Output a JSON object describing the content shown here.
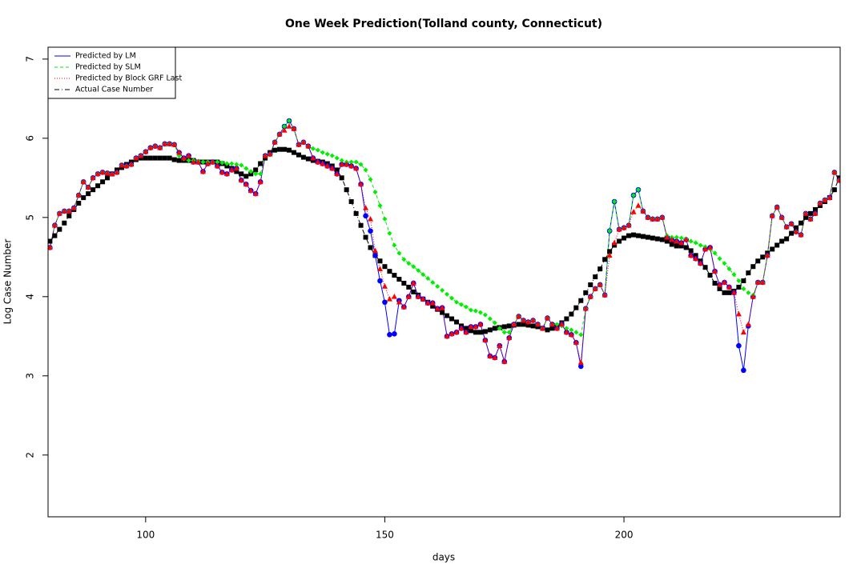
{
  "chart_data": {
    "type": "line",
    "title": "One Week Prediction(Tolland county, Connecticut)",
    "xlabel": "days",
    "ylabel": "Log Case Number",
    "xlim": [
      79.6,
      245.2
    ],
    "ylim": [
      1.22,
      7.15
    ],
    "xticks": [
      100,
      150,
      200
    ],
    "yticks": [
      2,
      3,
      4,
      5,
      6,
      7
    ],
    "legend": "top-left",
    "x": [
      80,
      81,
      82,
      83,
      84,
      85,
      86,
      87,
      88,
      89,
      90,
      91,
      92,
      93,
      94,
      95,
      96,
      97,
      98,
      99,
      100,
      101,
      102,
      103,
      104,
      105,
      106,
      107,
      108,
      109,
      110,
      111,
      112,
      113,
      114,
      115,
      116,
      117,
      118,
      119,
      120,
      121,
      122,
      123,
      124,
      125,
      126,
      127,
      128,
      129,
      130,
      131,
      132,
      133,
      134,
      135,
      136,
      137,
      138,
      139,
      140,
      141,
      142,
      143,
      144,
      145,
      146,
      147,
      148,
      149,
      150,
      151,
      152,
      153,
      154,
      155,
      156,
      157,
      158,
      159,
      160,
      161,
      162,
      163,
      164,
      165,
      166,
      167,
      168,
      169,
      170,
      171,
      172,
      173,
      174,
      175,
      176,
      177,
      178,
      179,
      180,
      181,
      182,
      183,
      184,
      185,
      186,
      187,
      188,
      189,
      190,
      191,
      192,
      193,
      194,
      195,
      196,
      197,
      198,
      199,
      200,
      201,
      202,
      203,
      204,
      205,
      206,
      207,
      208,
      209,
      210,
      211,
      212,
      213,
      214,
      215,
      216,
      217,
      218,
      219,
      220,
      221,
      222,
      223,
      224,
      225,
      226,
      227,
      228,
      229,
      230,
      231,
      232,
      233,
      234,
      235,
      236,
      237,
      238,
      239,
      240,
      241,
      242,
      243,
      244,
      245
    ],
    "series": [
      {
        "name": "Predicted by LM",
        "color": "#0000ff",
        "linestyle": "solid",
        "marker": "circle",
        "values": [
          4.62,
          4.9,
          5.05,
          5.08,
          5.08,
          5.12,
          5.28,
          5.45,
          5.38,
          5.5,
          5.55,
          5.57,
          5.56,
          5.55,
          5.57,
          5.66,
          5.65,
          5.67,
          5.75,
          5.78,
          5.83,
          5.88,
          5.9,
          5.88,
          5.93,
          5.93,
          5.92,
          5.82,
          5.75,
          5.78,
          5.7,
          5.7,
          5.58,
          5.68,
          5.7,
          5.65,
          5.57,
          5.55,
          5.6,
          5.62,
          5.47,
          5.42,
          5.34,
          5.3,
          5.45,
          5.78,
          5.8,
          5.95,
          6.05,
          6.15,
          6.22,
          6.12,
          5.92,
          5.95,
          5.9,
          5.75,
          5.7,
          5.68,
          5.65,
          5.62,
          5.55,
          5.67,
          5.67,
          5.65,
          5.62,
          5.42,
          5.02,
          4.83,
          4.52,
          4.2,
          3.93,
          3.52,
          3.53,
          3.95,
          3.87,
          4.0,
          4.17,
          4.0,
          3.97,
          3.92,
          3.92,
          3.85,
          3.86,
          3.5,
          3.53,
          3.55,
          3.6,
          3.55,
          3.62,
          3.62,
          3.65,
          3.45,
          3.25,
          3.23,
          3.38,
          3.18,
          3.48,
          3.65,
          3.75,
          3.7,
          3.68,
          3.7,
          3.65,
          3.6,
          3.73,
          3.65,
          3.6,
          3.65,
          3.55,
          3.52,
          3.42,
          3.12,
          3.85,
          4.0,
          4.1,
          4.15,
          4.02,
          4.83,
          5.2,
          4.85,
          4.87,
          4.9,
          5.28,
          5.35,
          5.08,
          5.0,
          4.98,
          4.98,
          5.0,
          4.75,
          4.72,
          4.7,
          4.68,
          4.72,
          4.52,
          4.48,
          4.42,
          4.6,
          4.62,
          4.32,
          4.15,
          4.18,
          4.12,
          4.05,
          3.38,
          3.07,
          3.63,
          4.0,
          4.18,
          4.18,
          4.52,
          5.02,
          5.13,
          5.0,
          4.88,
          4.92,
          4.82,
          4.78,
          5.05,
          4.98,
          5.05,
          5.18,
          5.22,
          5.25,
          5.57,
          5.47
        ]
      },
      {
        "name": "Predicted by SLM",
        "color": "#00ee00",
        "linestyle": "dash",
        "marker": "diamond",
        "values": [
          4.62,
          4.9,
          5.05,
          5.08,
          5.08,
          5.12,
          5.28,
          5.45,
          5.38,
          5.5,
          5.55,
          5.57,
          5.56,
          5.55,
          5.57,
          5.66,
          5.65,
          5.67,
          5.75,
          5.78,
          5.83,
          5.88,
          5.9,
          5.88,
          5.93,
          5.93,
          5.92,
          5.78,
          5.74,
          5.72,
          5.72,
          5.71,
          5.7,
          5.7,
          5.7,
          5.7,
          5.69,
          5.68,
          5.68,
          5.67,
          5.66,
          5.62,
          5.58,
          5.55,
          5.55,
          5.78,
          5.8,
          5.95,
          6.05,
          6.15,
          6.22,
          6.12,
          5.92,
          5.95,
          5.9,
          5.87,
          5.85,
          5.82,
          5.8,
          5.78,
          5.75,
          5.72,
          5.7,
          5.7,
          5.7,
          5.67,
          5.6,
          5.48,
          5.32,
          5.15,
          4.98,
          4.8,
          4.65,
          4.55,
          4.47,
          4.42,
          4.38,
          4.33,
          4.28,
          4.23,
          4.18,
          4.13,
          4.08,
          4.03,
          3.98,
          3.93,
          3.9,
          3.87,
          3.83,
          3.82,
          3.8,
          3.77,
          3.72,
          3.67,
          3.6,
          3.55,
          3.55,
          3.65,
          3.75,
          3.7,
          3.68,
          3.7,
          3.65,
          3.6,
          3.73,
          3.65,
          3.65,
          3.63,
          3.6,
          3.58,
          3.55,
          3.52,
          3.85,
          4.0,
          4.1,
          4.15,
          4.02,
          4.83,
          5.2,
          4.85,
          4.87,
          4.9,
          5.28,
          5.35,
          5.08,
          5.0,
          4.98,
          4.98,
          5.0,
          4.77,
          4.75,
          4.75,
          4.74,
          4.73,
          4.7,
          4.68,
          4.65,
          4.63,
          4.6,
          4.55,
          4.48,
          4.42,
          4.35,
          4.28,
          4.2,
          4.1,
          4.05,
          4.02,
          4.18,
          4.18,
          4.52,
          5.02,
          5.13,
          5.0,
          4.88,
          4.92,
          4.82,
          4.78,
          5.05,
          4.98,
          5.05,
          5.18,
          5.22,
          5.25,
          5.57,
          5.47
        ]
      },
      {
        "name": "Predicted by Block GRF Last",
        "color": "#ff0000",
        "linestyle": "dot",
        "marker": "triangle",
        "values": [
          4.62,
          4.9,
          5.05,
          5.08,
          5.08,
          5.12,
          5.28,
          5.45,
          5.38,
          5.5,
          5.55,
          5.57,
          5.56,
          5.55,
          5.57,
          5.66,
          5.65,
          5.67,
          5.75,
          5.78,
          5.83,
          5.88,
          5.9,
          5.88,
          5.93,
          5.93,
          5.92,
          5.82,
          5.75,
          5.78,
          5.7,
          5.7,
          5.58,
          5.68,
          5.7,
          5.65,
          5.57,
          5.55,
          5.6,
          5.62,
          5.47,
          5.42,
          5.34,
          5.3,
          5.45,
          5.78,
          5.8,
          5.95,
          6.05,
          6.1,
          6.15,
          6.12,
          5.92,
          5.95,
          5.9,
          5.75,
          5.7,
          5.68,
          5.65,
          5.62,
          5.55,
          5.67,
          5.67,
          5.65,
          5.62,
          5.42,
          5.12,
          4.98,
          4.58,
          4.35,
          4.13,
          3.97,
          4.0,
          3.93,
          3.87,
          4.0,
          4.17,
          4.0,
          3.97,
          3.92,
          3.92,
          3.85,
          3.86,
          3.5,
          3.53,
          3.55,
          3.6,
          3.55,
          3.62,
          3.62,
          3.65,
          3.45,
          3.25,
          3.23,
          3.38,
          3.18,
          3.48,
          3.65,
          3.75,
          3.7,
          3.68,
          3.7,
          3.65,
          3.6,
          3.73,
          3.65,
          3.6,
          3.65,
          3.55,
          3.52,
          3.42,
          3.17,
          3.85,
          4.0,
          4.1,
          4.15,
          4.02,
          4.52,
          4.68,
          4.85,
          4.87,
          4.9,
          5.07,
          5.15,
          5.08,
          5.0,
          4.98,
          4.98,
          5.0,
          4.75,
          4.72,
          4.7,
          4.68,
          4.72,
          4.52,
          4.48,
          4.42,
          4.6,
          4.62,
          4.32,
          4.15,
          4.18,
          4.12,
          4.05,
          3.78,
          3.55,
          3.65,
          4.0,
          4.18,
          4.18,
          4.52,
          5.02,
          5.13,
          5.0,
          4.88,
          4.92,
          4.82,
          4.78,
          5.05,
          4.98,
          5.05,
          5.18,
          5.22,
          5.25,
          5.57,
          5.47
        ]
      },
      {
        "name": "Actual Case Number",
        "color": "#000000",
        "linestyle": "dotdash",
        "marker": "square",
        "values": [
          4.7,
          4.77,
          4.85,
          4.93,
          5.02,
          5.1,
          5.18,
          5.25,
          5.3,
          5.35,
          5.4,
          5.45,
          5.5,
          5.55,
          5.6,
          5.63,
          5.67,
          5.7,
          5.73,
          5.75,
          5.75,
          5.75,
          5.75,
          5.75,
          5.75,
          5.75,
          5.73,
          5.72,
          5.72,
          5.72,
          5.72,
          5.7,
          5.7,
          5.7,
          5.7,
          5.7,
          5.68,
          5.65,
          5.62,
          5.58,
          5.55,
          5.52,
          5.55,
          5.6,
          5.68,
          5.75,
          5.82,
          5.85,
          5.86,
          5.86,
          5.85,
          5.82,
          5.79,
          5.76,
          5.74,
          5.72,
          5.71,
          5.7,
          5.68,
          5.65,
          5.6,
          5.5,
          5.35,
          5.2,
          5.05,
          4.9,
          4.75,
          4.62,
          4.52,
          4.45,
          4.38,
          4.32,
          4.27,
          4.22,
          4.17,
          4.12,
          4.06,
          4.02,
          3.97,
          3.93,
          3.88,
          3.84,
          3.8,
          3.76,
          3.72,
          3.68,
          3.63,
          3.6,
          3.57,
          3.55,
          3.55,
          3.56,
          3.58,
          3.6,
          3.61,
          3.62,
          3.63,
          3.64,
          3.65,
          3.65,
          3.64,
          3.63,
          3.62,
          3.6,
          3.58,
          3.6,
          3.63,
          3.67,
          3.72,
          3.78,
          3.86,
          3.95,
          4.05,
          4.15,
          4.25,
          4.35,
          4.47,
          4.57,
          4.65,
          4.7,
          4.74,
          4.77,
          4.78,
          4.77,
          4.76,
          4.75,
          4.74,
          4.73,
          4.72,
          4.7,
          4.66,
          4.64,
          4.64,
          4.62,
          4.58,
          4.52,
          4.45,
          4.37,
          4.27,
          4.17,
          4.1,
          4.05,
          4.05,
          4.07,
          4.12,
          4.2,
          4.3,
          4.38,
          4.45,
          4.5,
          4.55,
          4.6,
          4.65,
          4.7,
          4.73,
          4.8,
          4.87,
          4.93,
          5.0,
          5.05,
          5.1,
          5.15,
          5.2,
          5.25,
          5.35,
          5.5
        ]
      }
    ]
  }
}
